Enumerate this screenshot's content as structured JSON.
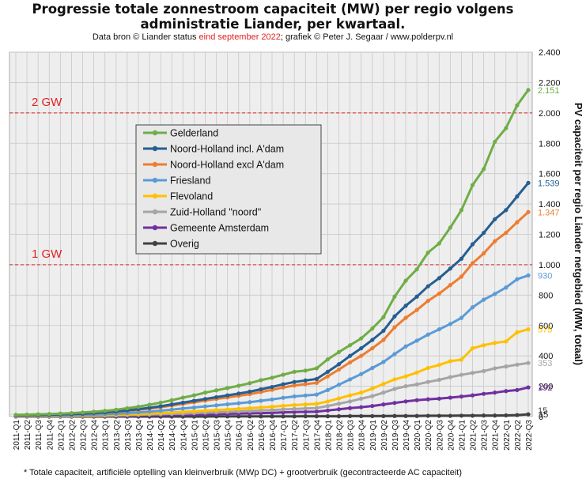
{
  "header": {
    "title_line1": "Progressie totale zonnestroom capaciteit (MW) per regio volgens",
    "title_line2": "administratie  Liander, per kwartaal.",
    "subtitle_prefix": "Data bron © Liander status ",
    "subtitle_date": "eind september 2022",
    "subtitle_suffix": "; grafiek © Peter J. Segaar / www.polderpv.nl"
  },
  "footnote": "* Totale capaciteit, artificiële optelling van kleinverbruik (MWp DC) + grootverbruik (gecontracteerde AC capaciteit)",
  "colors": {
    "plot_bg": "#eeeeee",
    "legend_bg": "#e8e8e8",
    "ref_line": "#e02020"
  },
  "chart_data": {
    "type": "line",
    "ylabel": "PV capaciteit per regio Liander netgebied (MW, totaal)",
    "ylim": [
      0,
      2400
    ],
    "yticks": [
      0,
      15,
      200,
      400,
      600,
      800,
      1000,
      1200,
      1400,
      1600,
      1800,
      2000,
      2200,
      2400
    ],
    "ytick_labels": [
      "0",
      "15",
      "200",
      "400",
      "600",
      "800",
      "1.000",
      "1.200",
      "1.400",
      "1.600",
      "1.800",
      "2.000",
      "2.200",
      "2.400"
    ],
    "grid": true,
    "legend_position": "upper-left",
    "categories": [
      "2011-Q1",
      "2011-Q2",
      "2011-Q3",
      "2011-Q4",
      "2012-Q1",
      "2012-Q2",
      "2012-Q3",
      "2012-Q4",
      "2013-Q1",
      "2013-Q2",
      "2013-Q3",
      "2013-Q4",
      "2014-Q1",
      "2014-Q2",
      "2014-Q3",
      "2014-Q4",
      "2015-Q1",
      "2015-Q2",
      "2015-Q3",
      "2015-Q4",
      "2016-Q1",
      "2016-Q2",
      "2016-Q3",
      "2016-Q4",
      "2017-Q1",
      "2017-Q2",
      "2017-Q3",
      "2017-Q4",
      "2018-Q1",
      "2018-Q2",
      "2018-Q3",
      "2018-Q4",
      "2019-Q1",
      "2019-Q2",
      "2019-Q3",
      "2019-Q4",
      "2020-Q1",
      "2020-Q2",
      "2020-Q3",
      "2020-Q4",
      "2021-Q1",
      "2021-Q2",
      "2021-Q3",
      "2021-Q4",
      "2022-Q1",
      "2022-Q2",
      "2022-Q3"
    ],
    "reference_lines": [
      {
        "value": 2000,
        "label": "2 GW"
      },
      {
        "value": 1000,
        "label": "1 GW"
      }
    ],
    "series": [
      {
        "name": "Gelderland",
        "color": "#70ad47",
        "end_label": "2.151",
        "values": [
          12,
          13,
          15,
          17,
          20,
          23,
          27,
          32,
          38,
          45,
          55,
          65,
          78,
          92,
          108,
          125,
          140,
          158,
          173,
          188,
          203,
          220,
          240,
          256,
          276,
          295,
          303,
          318,
          377,
          425,
          470,
          515,
          580,
          655,
          790,
          895,
          970,
          1080,
          1140,
          1245,
          1360,
          1525,
          1630,
          1810,
          1900,
          2050,
          2151
        ]
      },
      {
        "name": "Noord-Holland incl. A'dam",
        "color": "#255e91",
        "end_label": "1.539",
        "values": [
          8,
          9,
          10,
          12,
          14,
          16,
          19,
          23,
          28,
          34,
          41,
          49,
          58,
          68,
          80,
          92,
          104,
          116,
          128,
          140,
          152,
          164,
          180,
          195,
          213,
          228,
          238,
          248,
          295,
          345,
          400,
          450,
          505,
          565,
          660,
          730,
          790,
          858,
          912,
          975,
          1040,
          1135,
          1210,
          1300,
          1360,
          1450,
          1539
        ]
      },
      {
        "name": "Noord-Holland excl A'dam",
        "color": "#ed7d31",
        "end_label": "1.347",
        "values": [
          7,
          8,
          9,
          11,
          13,
          15,
          17,
          21,
          26,
          31,
          38,
          45,
          53,
          62,
          73,
          84,
          94,
          105,
          116,
          126,
          137,
          148,
          162,
          176,
          192,
          205,
          214,
          222,
          265,
          310,
          357,
          400,
          450,
          505,
          588,
          650,
          702,
          762,
          810,
          866,
          922,
          1010,
          1075,
          1155,
          1210,
          1280,
          1347
        ]
      },
      {
        "name": "Friesland",
        "color": "#5b9bd5",
        "end_label": "930",
        "values": [
          5,
          5,
          6,
          7,
          8,
          9,
          11,
          13,
          16,
          19,
          23,
          28,
          33,
          39,
          46,
          53,
          60,
          67,
          74,
          81,
          88,
          95,
          104,
          113,
          124,
          133,
          139,
          145,
          175,
          210,
          245,
          280,
          320,
          360,
          412,
          462,
          500,
          540,
          575,
          610,
          650,
          720,
          770,
          808,
          850,
          905,
          930
        ]
      },
      {
        "name": "Flevoland",
        "color": "#ffc000",
        "end_label": "575",
        "values": [
          3,
          3,
          4,
          4,
          5,
          6,
          7,
          8,
          10,
          12,
          14,
          17,
          20,
          23,
          27,
          31,
          35,
          39,
          43,
          47,
          51,
          55,
          60,
          65,
          71,
          76,
          80,
          84,
          100,
          120,
          140,
          158,
          185,
          215,
          245,
          265,
          290,
          320,
          340,
          365,
          375,
          450,
          470,
          485,
          495,
          555,
          575
        ]
      },
      {
        "name": "Zuid-Holland \"noord\"",
        "color": "#a5a5a5",
        "end_label": "353",
        "values": [
          2,
          2,
          3,
          3,
          4,
          4,
          5,
          6,
          7,
          8,
          10,
          12,
          14,
          16,
          18,
          20,
          23,
          26,
          28,
          31,
          34,
          37,
          40,
          43,
          47,
          50,
          53,
          56,
          70,
          85,
          100,
          118,
          135,
          158,
          182,
          200,
          212,
          228,
          242,
          260,
          275,
          288,
          300,
          318,
          330,
          342,
          353
        ]
      },
      {
        "name": "Gemeente Amsterdam",
        "color": "#7030a0",
        "end_label": "192",
        "values": [
          1,
          1,
          1,
          2,
          2,
          2,
          3,
          3,
          4,
          5,
          6,
          7,
          8,
          9,
          10,
          12,
          13,
          15,
          16,
          18,
          20,
          21,
          23,
          25,
          28,
          30,
          31,
          33,
          40,
          48,
          56,
          62,
          70,
          80,
          90,
          100,
          108,
          114,
          118,
          125,
          132,
          140,
          150,
          158,
          168,
          175,
          192
        ]
      },
      {
        "name": "Overig",
        "color": "#404040",
        "end_label": "15",
        "values": [
          0,
          0,
          0,
          0,
          0,
          0,
          0,
          0,
          0,
          0,
          0,
          0,
          0,
          0,
          0,
          0,
          0,
          0,
          1,
          1,
          1,
          1,
          1,
          1,
          1,
          1,
          2,
          2,
          2,
          2,
          3,
          3,
          3,
          3,
          4,
          4,
          4,
          5,
          5,
          5,
          6,
          6,
          7,
          7,
          8,
          10,
          15
        ]
      }
    ]
  }
}
